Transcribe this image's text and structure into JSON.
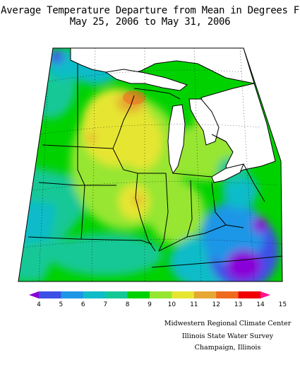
{
  "title": {
    "line1": "Average Temperature Departure from Mean in Degrees F",
    "line2": "May 25, 2006 to May 31, 2006"
  },
  "legend": {
    "values": [
      "4",
      "5",
      "6",
      "7",
      "8",
      "9",
      "10",
      "11",
      "12",
      "13",
      "14",
      "15"
    ],
    "colors": [
      "#8a00d8",
      "#3c50e6",
      "#1e96e6",
      "#10bcc8",
      "#14c896",
      "#00d200",
      "#96e630",
      "#e6e632",
      "#e6a832",
      "#f06a1e",
      "#f00000",
      "#ff1493"
    ]
  },
  "credits": {
    "line1": "Midwestern Regional Climate Center",
    "line2": "Illinois State Water Survey",
    "line3": "Champaign, Illinois"
  }
}
